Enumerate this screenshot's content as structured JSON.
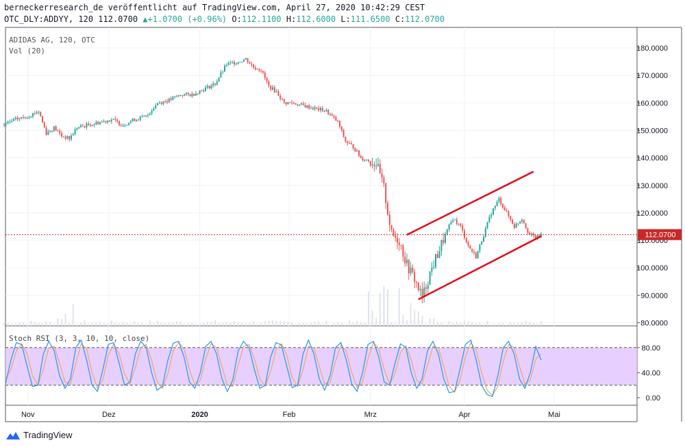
{
  "header": {
    "attribution": "berneckerresearch_de veröffentlicht auf TradingView.com, April 27, 2020 10:42:29 CEST",
    "symbol_line": "OTC_DLY:ADDYY, 120 112.0700",
    "change_arrow": "▲",
    "change": "+1.0700 (+0.96%)",
    "o_label": "O:",
    "o_value": "112.1100",
    "h_label": "H:",
    "h_value": "112.6000",
    "l_label": "L:",
    "l_value": "111.6500",
    "c_label": "C:",
    "c_value": "112.0700"
  },
  "overlay": {
    "instrument": "ADIDAS AG, 120, OTC",
    "volume": "Vol (20)",
    "rsi_label": "Stoch RSI (3, 3, 10, 10, close)"
  },
  "footer": {
    "brand": "TradingView"
  },
  "colors": {
    "up": "#26a69a",
    "down": "#ef5350",
    "channel": "#e50914",
    "price_line": "#c62828",
    "rsi_band": "#e1c4ff",
    "k_line": "#2196f3",
    "d_line": "#f4a460"
  },
  "chart_data": {
    "type": "candlestick",
    "price_axis": {
      "min": 80,
      "max": 180,
      "ticks": [
        "180.0000",
        "170.0000",
        "160.0000",
        "150.0000",
        "140.0000",
        "130.0000",
        "120.0000",
        "110.0000",
        "100.0000",
        "90.0000",
        "80.0000"
      ]
    },
    "current_price": {
      "value": 112.07,
      "label": "112.0700"
    },
    "time_axis": {
      "labels": [
        "Nov",
        "Dez",
        "2020",
        "Feb",
        "Mrz",
        "Apr",
        "Mai"
      ]
    },
    "price_path": [
      [
        0,
        152
      ],
      [
        3,
        154
      ],
      [
        6,
        155
      ],
      [
        9,
        157
      ],
      [
        11,
        149
      ],
      [
        13,
        151
      ],
      [
        15,
        148
      ],
      [
        17,
        147
      ],
      [
        19,
        151
      ],
      [
        22,
        152
      ],
      [
        25,
        153
      ],
      [
        28,
        154
      ],
      [
        31,
        152
      ],
      [
        34,
        154
      ],
      [
        37,
        155
      ],
      [
        40,
        160
      ],
      [
        43,
        161
      ],
      [
        46,
        163
      ],
      [
        49,
        163
      ],
      [
        52,
        165
      ],
      [
        55,
        167
      ],
      [
        58,
        174
      ],
      [
        61,
        175
      ],
      [
        63,
        176
      ],
      [
        65,
        173
      ],
      [
        67,
        172
      ],
      [
        69,
        166
      ],
      [
        71,
        164
      ],
      [
        73,
        160
      ],
      [
        75,
        160
      ],
      [
        78,
        159
      ],
      [
        81,
        158
      ],
      [
        84,
        157
      ],
      [
        87,
        153
      ],
      [
        89,
        146
      ],
      [
        91,
        144
      ],
      [
        93,
        140
      ],
      [
        95,
        139
      ],
      [
        97,
        138
      ],
      [
        99,
        129
      ],
      [
        101,
        112
      ],
      [
        103,
        110
      ],
      [
        105,
        101
      ],
      [
        107,
        96
      ],
      [
        109,
        89
      ],
      [
        111,
        98
      ],
      [
        113,
        105
      ],
      [
        115,
        112
      ],
      [
        117,
        118
      ],
      [
        119,
        115
      ],
      [
        121,
        108
      ],
      [
        123,
        104
      ],
      [
        125,
        112
      ],
      [
        127,
        120
      ],
      [
        129,
        125
      ],
      [
        131,
        120
      ],
      [
        133,
        115
      ],
      [
        135,
        118
      ],
      [
        137,
        112
      ],
      [
        139,
        111
      ],
      [
        140,
        112.07
      ]
    ],
    "trend_channel": {
      "upper": [
        [
          105,
          112
        ],
        [
          138,
          135
        ]
      ],
      "lower": [
        [
          108,
          88.5
        ],
        [
          140,
          111.5
        ]
      ]
    },
    "stoch_rsi": {
      "title": "Stoch RSI (3, 3, 10, 10, close)",
      "levels": {
        "upper": 80,
        "lower": 20
      },
      "axis_ticks": [
        "80.00",
        "40.00",
        "0.00"
      ],
      "k": [
        22,
        60,
        88,
        85,
        50,
        18,
        20,
        70,
        90,
        75,
        35,
        15,
        30,
        80,
        92,
        60,
        20,
        10,
        45,
        85,
        88,
        55,
        20,
        25,
        70,
        90,
        80,
        40,
        12,
        18,
        60,
        87,
        90,
        65,
        25,
        15,
        40,
        82,
        90,
        70,
        30,
        10,
        28,
        75,
        90,
        80,
        45,
        15,
        20,
        65,
        88,
        84,
        50,
        16,
        20,
        70,
        92,
        70,
        30,
        12,
        35,
        80,
        88,
        60,
        22,
        10,
        40,
        85,
        90,
        65,
        25,
        20,
        55,
        86,
        80,
        40,
        15,
        30,
        75,
        90,
        70,
        30,
        8,
        10,
        45,
        85,
        92,
        60,
        20,
        5,
        2,
        35,
        80,
        90,
        70,
        30,
        15,
        40,
        82,
        60
      ],
      "d": [
        30,
        45,
        75,
        86,
        70,
        35,
        20,
        45,
        80,
        82,
        55,
        25,
        22,
        55,
        86,
        78,
        40,
        15,
        28,
        68,
        86,
        70,
        38,
        22,
        48,
        80,
        85,
        60,
        26,
        15,
        38,
        75,
        88,
        78,
        45,
        20,
        28,
        62,
        86,
        80,
        50,
        20,
        18,
        52,
        82,
        85,
        62,
        30,
        18,
        42,
        76,
        86,
        68,
        32,
        18,
        45,
        82,
        80,
        50,
        22,
        24,
        58,
        84,
        74,
        40,
        16,
        25,
        62,
        88,
        78,
        45,
        22,
        38,
        72,
        83,
        60,
        28,
        22,
        52,
        82,
        80,
        50,
        18,
        9,
        28,
        65,
        88,
        76,
        40,
        12,
        4,
        18,
        58,
        85,
        80,
        50,
        22,
        28,
        62,
        70
      ]
    }
  }
}
